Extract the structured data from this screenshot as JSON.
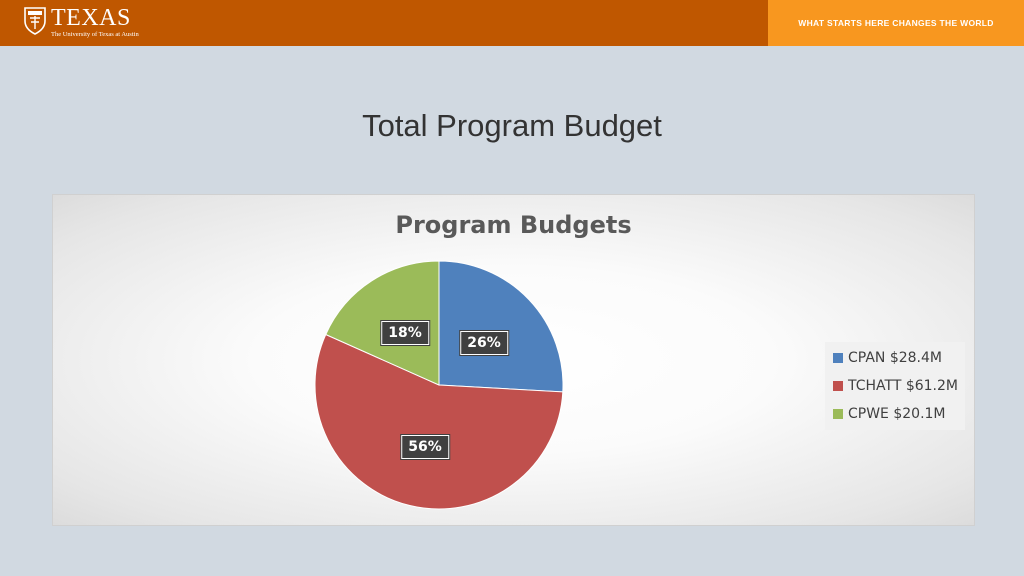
{
  "header": {
    "logo_word": "TEXAS",
    "logo_subtitle": "The University of Texas at Austin",
    "tagline": "WHAT STARTS HERE CHANGES THE WORLD",
    "colors": {
      "burnt_orange": "#bf5700",
      "accent_orange": "#f8971f"
    }
  },
  "slide": {
    "title": "Total Program Budget"
  },
  "chart_data": {
    "type": "pie",
    "title": "Program Budgets",
    "legend_position": "right",
    "slices": [
      {
        "name": "CPAN $28.4M",
        "value": 28.4,
        "label": "26%",
        "color": "#4f81bd"
      },
      {
        "name": "TCHATT $61.2M",
        "value": 61.2,
        "label": "56%",
        "color": "#c0504d"
      },
      {
        "name": "CPWE $20.1M",
        "value": 20.1,
        "label": "18%",
        "color": "#9bbb59"
      }
    ]
  }
}
